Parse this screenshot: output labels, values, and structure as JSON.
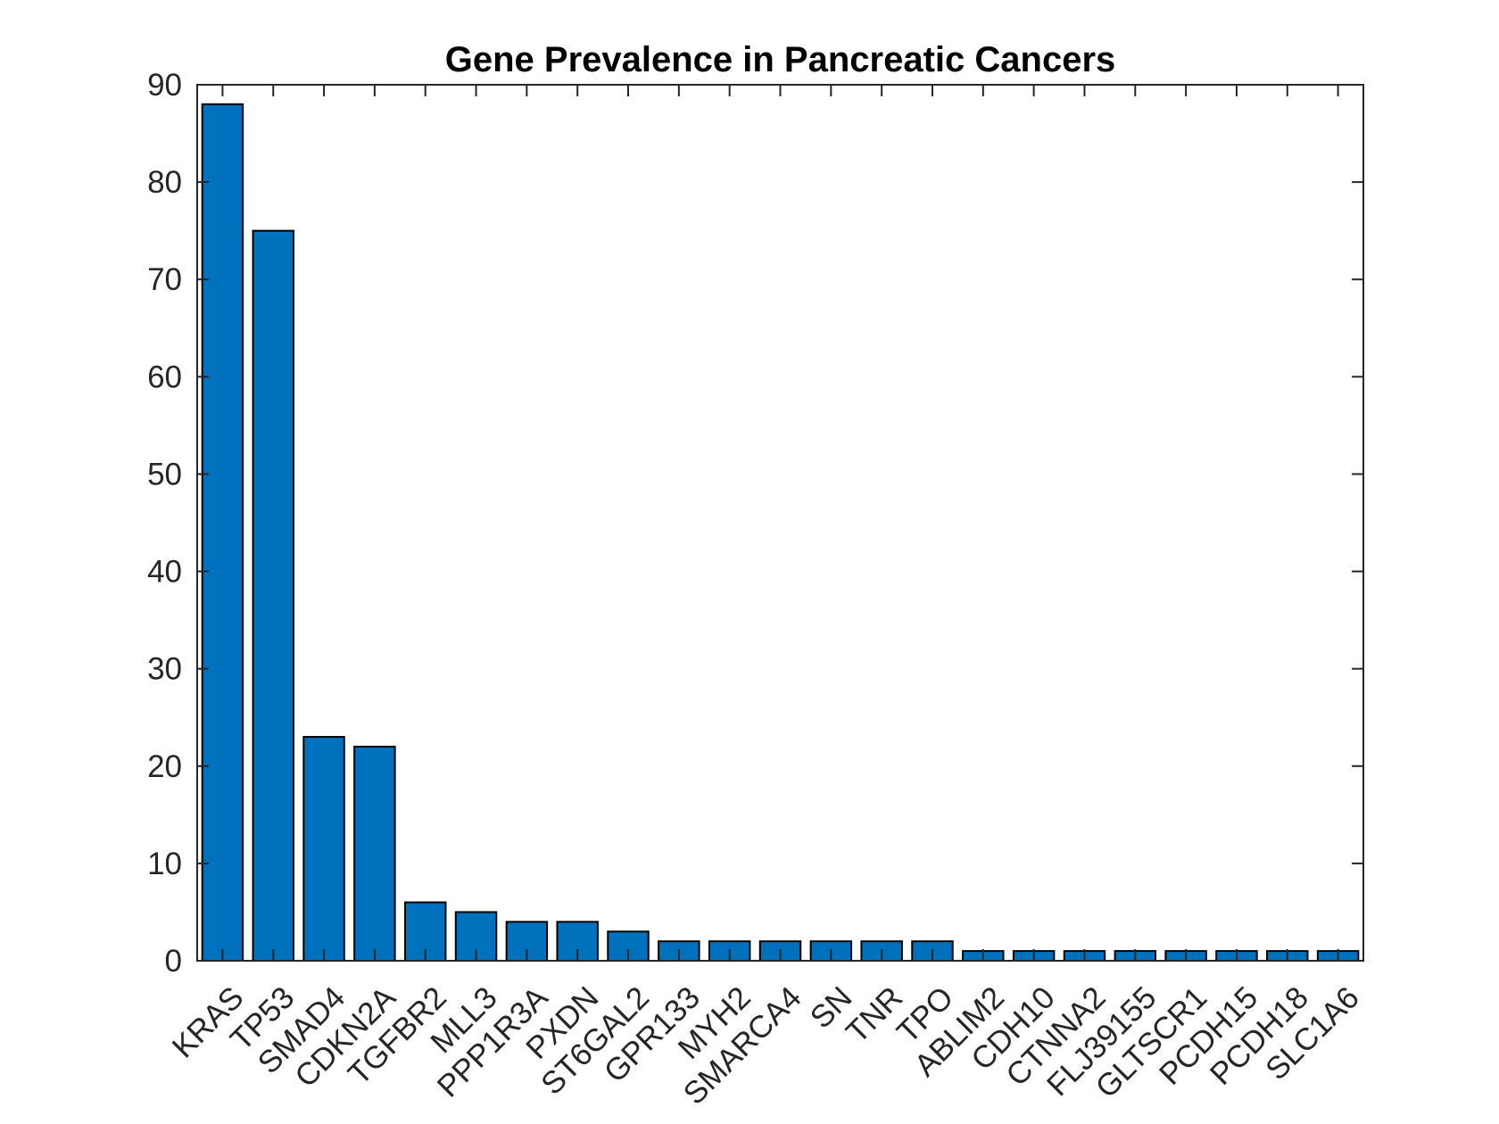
{
  "chart_data": {
    "type": "bar",
    "title": "Gene Prevalence in Pancreatic Cancers",
    "xlabel": "",
    "ylabel": "",
    "categories": [
      "KRAS",
      "TP53",
      "SMAD4",
      "CDKN2A",
      "TGFBR2",
      "MLL3",
      "PPP1R3A",
      "PXDN",
      "ST6GAL2",
      "GPR133",
      "MYH2",
      "SMARCA4",
      "SN",
      "TNR",
      "TPO",
      "ABLIM2",
      "CDH10",
      "CTNNA2",
      "FLJ39155",
      "GLTSCR1",
      "PCDH15",
      "PCDH18",
      "SLC1A6"
    ],
    "values": [
      88,
      75,
      23,
      22,
      6,
      5,
      4,
      4,
      3,
      2,
      2,
      2,
      2,
      2,
      2,
      1,
      1,
      1,
      1,
      1,
      1,
      1,
      1
    ],
    "ylim": [
      0,
      90
    ],
    "yticks": [
      0,
      10,
      20,
      30,
      40,
      50,
      60,
      70,
      80,
      90
    ],
    "grid": false,
    "bar_color": "#0072bd"
  }
}
